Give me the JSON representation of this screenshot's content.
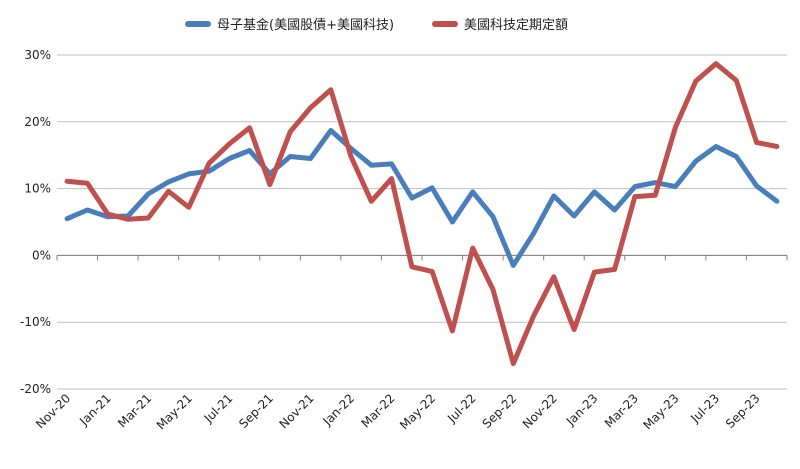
{
  "chart_data": {
    "type": "line",
    "title": "",
    "xlabel": "",
    "ylabel": "",
    "ylim": [
      -20,
      30
    ],
    "y_ticks": [
      "-20%",
      "-10%",
      "0%",
      "10%",
      "20%",
      "30%"
    ],
    "y_tick_values": [
      -20,
      -10,
      0,
      10,
      20,
      30
    ],
    "x_tick_labels": [
      "Nov-20",
      "Jan-21",
      "Mar-21",
      "May-21",
      "Jul-21",
      "Sep-21",
      "Nov-21",
      "Jan-22",
      "Mar-22",
      "May-22",
      "Jul-22",
      "Sep-22",
      "Nov-22",
      "Jan-23",
      "Mar-23",
      "May-23",
      "Jul-23",
      "Sep-23"
    ],
    "x": [
      "Nov-20",
      "Dec-20",
      "Jan-21",
      "Feb-21",
      "Mar-21",
      "Apr-21",
      "May-21",
      "Jun-21",
      "Jul-21",
      "Aug-21",
      "Sep-21",
      "Oct-21",
      "Nov-21",
      "Dec-21",
      "Jan-22",
      "Feb-22",
      "Mar-22",
      "Apr-22",
      "May-22",
      "Jun-22",
      "Jul-22",
      "Aug-22",
      "Sep-22",
      "Oct-22",
      "Nov-22",
      "Dec-22",
      "Jan-23",
      "Feb-23",
      "Mar-23",
      "Apr-23",
      "May-23",
      "Jun-23",
      "Jul-23",
      "Aug-23",
      "Sep-23",
      "Oct-23"
    ],
    "grid": "horizontal",
    "legend_position": "top",
    "series": [
      {
        "name": "母子基金(美國股債+美國科技)",
        "color": "#4a7ebb",
        "values": [
          5.5,
          6.8,
          5.8,
          5.9,
          9.2,
          11.0,
          12.2,
          12.6,
          14.5,
          15.7,
          12.2,
          14.8,
          14.5,
          18.7,
          16.0,
          13.5,
          13.7,
          8.6,
          10.1,
          5.0,
          9.5,
          5.8,
          -1.5,
          3.3,
          8.9,
          5.9,
          9.5,
          6.8,
          10.3,
          10.9,
          10.3,
          14.1,
          16.3,
          14.8,
          10.4,
          8.1
        ]
      },
      {
        "name": "美國科技定期定額",
        "color": "#c0504d",
        "values": [
          11.1,
          10.8,
          6.2,
          5.4,
          5.6,
          9.6,
          7.2,
          13.8,
          16.7,
          19.1,
          10.6,
          18.5,
          22.1,
          24.8,
          14.8,
          8.1,
          11.5,
          -1.7,
          -2.4,
          -11.3,
          1.1,
          -5.1,
          -16.2,
          -9.1,
          -3.2,
          -11.1,
          -2.5,
          -2.1,
          8.8,
          9.0,
          19.2,
          26.1,
          28.7,
          26.2,
          16.9,
          16.3
        ]
      }
    ]
  }
}
